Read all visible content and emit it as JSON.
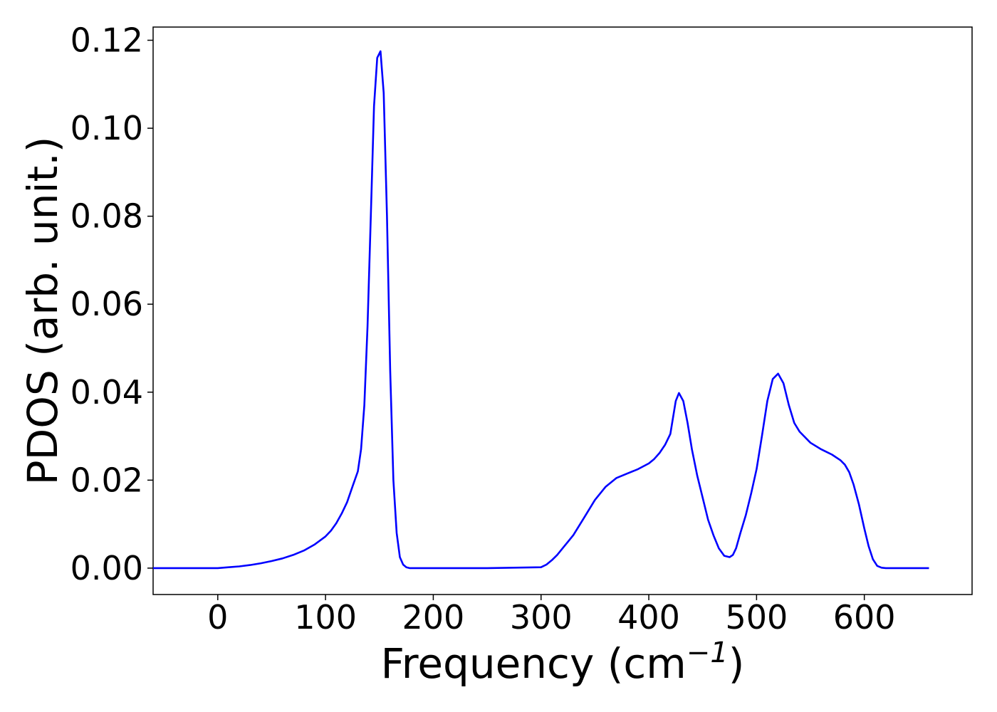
{
  "chart_data": {
    "type": "line",
    "title": "",
    "xlabel": "Frequency (cm",
    "xlabel_exponent": "−1",
    "xlabel_close": ")",
    "ylabel": "PDOS (arb. unit.)",
    "xlim": [
      -60,
      700
    ],
    "ylim": [
      -0.006,
      0.123
    ],
    "x_ticks": [
      0,
      100,
      200,
      300,
      400,
      500,
      600
    ],
    "x_tick_labels": [
      "0",
      "100",
      "200",
      "300",
      "400",
      "500",
      "600"
    ],
    "y_ticks": [
      0.0,
      0.02,
      0.04,
      0.06,
      0.08,
      0.1,
      0.12
    ],
    "y_tick_labels": [
      "0.00",
      "0.02",
      "0.04",
      "0.06",
      "0.08",
      "0.10",
      "0.12"
    ],
    "grid": false,
    "legend": "none",
    "series": [
      {
        "color": "#0000ff",
        "x": [
          -60,
          0,
          10,
          20,
          30,
          40,
          50,
          60,
          70,
          80,
          90,
          100,
          105,
          110,
          115,
          120,
          125,
          130,
          133,
          136,
          139,
          142,
          145,
          148,
          151,
          154,
          157,
          160,
          163,
          166,
          169,
          172,
          175,
          178,
          182,
          190,
          200,
          250,
          300,
          305,
          310,
          315,
          320,
          330,
          340,
          350,
          360,
          370,
          380,
          390,
          400,
          405,
          410,
          415,
          420,
          425,
          428,
          432,
          436,
          440,
          445,
          450,
          455,
          460,
          465,
          470,
          475,
          478,
          481,
          485,
          490,
          495,
          500,
          505,
          510,
          515,
          520,
          525,
          530,
          535,
          540,
          550,
          560,
          570,
          578,
          582,
          586,
          590,
          595,
          600,
          604,
          608,
          612,
          616,
          620,
          640,
          660
        ],
        "y": [
          0.0,
          0.0,
          0.0002,
          0.0004,
          0.0007,
          0.0011,
          0.0016,
          0.0022,
          0.003,
          0.004,
          0.0054,
          0.0072,
          0.0085,
          0.0102,
          0.0124,
          0.015,
          0.0185,
          0.022,
          0.027,
          0.037,
          0.055,
          0.08,
          0.105,
          0.116,
          0.1175,
          0.108,
          0.08,
          0.045,
          0.02,
          0.008,
          0.0025,
          0.0008,
          0.0002,
          0.0,
          0.0,
          0.0,
          0.0,
          0.0,
          0.0002,
          0.0008,
          0.0018,
          0.003,
          0.0045,
          0.0075,
          0.0115,
          0.0155,
          0.0185,
          0.0205,
          0.0215,
          0.0225,
          0.0238,
          0.0248,
          0.0262,
          0.028,
          0.0305,
          0.038,
          0.0398,
          0.038,
          0.033,
          0.027,
          0.021,
          0.016,
          0.011,
          0.0075,
          0.0045,
          0.0028,
          0.0025,
          0.003,
          0.0045,
          0.008,
          0.012,
          0.017,
          0.0225,
          0.03,
          0.038,
          0.043,
          0.0442,
          0.042,
          0.037,
          0.033,
          0.031,
          0.0285,
          0.027,
          0.0258,
          0.0245,
          0.0235,
          0.0218,
          0.019,
          0.0145,
          0.009,
          0.005,
          0.002,
          0.0005,
          0.0001,
          0.0,
          0.0,
          0.0
        ]
      }
    ]
  }
}
